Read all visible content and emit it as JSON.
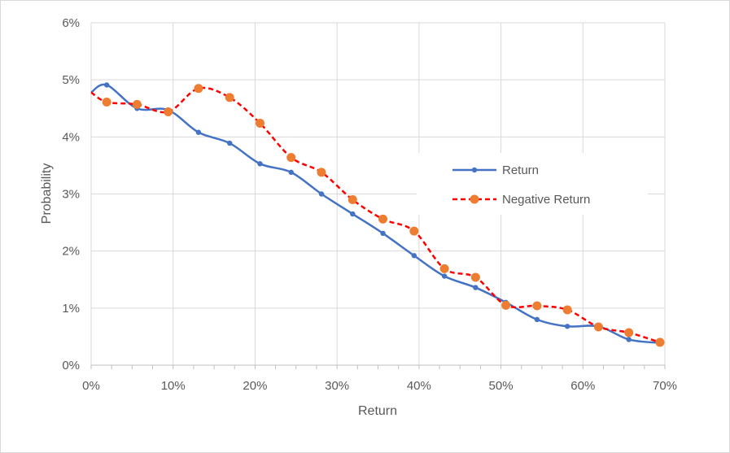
{
  "chart_data": {
    "type": "line",
    "title": "",
    "xlabel": "Return",
    "ylabel": "Probability",
    "xlim": [
      0,
      0.7
    ],
    "ylim": [
      0,
      0.06
    ],
    "x_ticks": [
      0,
      0.1,
      0.2,
      0.3,
      0.4,
      0.5,
      0.6,
      0.7
    ],
    "x_tick_labels": [
      "0%",
      "10%",
      "20%",
      "30%",
      "40%",
      "50%",
      "60%",
      "70%"
    ],
    "y_ticks": [
      0,
      0.01,
      0.02,
      0.03,
      0.04,
      0.05,
      0.06
    ],
    "y_tick_labels": [
      "0%",
      "1%",
      "2%",
      "3%",
      "4%",
      "5%",
      "6%"
    ],
    "grid": true,
    "legend_position": "right",
    "series": [
      {
        "name": "Return",
        "color": "#4472c4",
        "line_style": "solid",
        "marker": "small-circle",
        "x": [
          0.0,
          0.019,
          0.056,
          0.094,
          0.131,
          0.169,
          0.206,
          0.244,
          0.281,
          0.319,
          0.356,
          0.394,
          0.431,
          0.469,
          0.506,
          0.544,
          0.581,
          0.619,
          0.656,
          0.694
        ],
        "y": [
          0.0478,
          0.0491,
          0.045,
          0.0447,
          0.0408,
          0.0389,
          0.0353,
          0.0338,
          0.03,
          0.0265,
          0.0231,
          0.0192,
          0.0156,
          0.0136,
          0.011,
          0.008,
          0.0068,
          0.0068,
          0.0045,
          0.0039
        ]
      },
      {
        "name": "Negative Return",
        "color": "#ff0000",
        "marker_color": "#ed7d31",
        "line_style": "dashed",
        "marker": "large-circle",
        "x": [
          0.0,
          0.019,
          0.056,
          0.094,
          0.131,
          0.169,
          0.206,
          0.244,
          0.281,
          0.319,
          0.356,
          0.394,
          0.431,
          0.469,
          0.506,
          0.544,
          0.581,
          0.619,
          0.656,
          0.694
        ],
        "y": [
          0.0478,
          0.0461,
          0.0457,
          0.0444,
          0.0485,
          0.0469,
          0.0424,
          0.0364,
          0.0338,
          0.029,
          0.0256,
          0.0235,
          0.0169,
          0.0154,
          0.0105,
          0.0104,
          0.0097,
          0.0067,
          0.0057,
          0.004
        ]
      }
    ]
  }
}
